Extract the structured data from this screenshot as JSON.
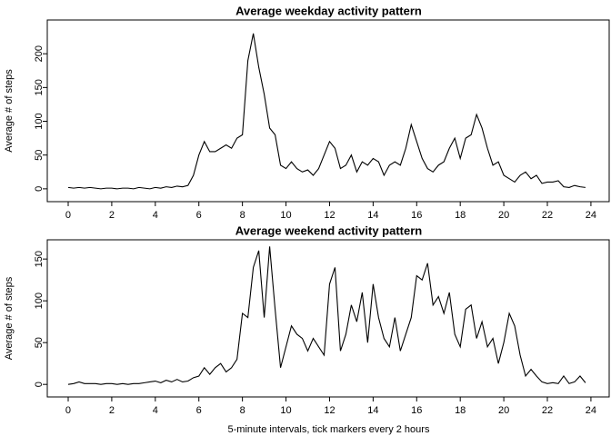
{
  "chart_data": [
    {
      "type": "line",
      "title": "Average weekday activity pattern",
      "y_label": "Average # of steps",
      "x": [
        0,
        0.25,
        0.5,
        0.75,
        1,
        1.25,
        1.5,
        1.75,
        2,
        2.25,
        2.5,
        2.75,
        3,
        3.25,
        3.5,
        3.75,
        4,
        4.25,
        4.5,
        4.75,
        5,
        5.25,
        5.5,
        5.75,
        6,
        6.25,
        6.5,
        6.75,
        7,
        7.25,
        7.5,
        7.75,
        8,
        8.25,
        8.5,
        8.75,
        9,
        9.25,
        9.5,
        9.75,
        10,
        10.25,
        10.5,
        10.75,
        11,
        11.25,
        11.5,
        11.75,
        12,
        12.25,
        12.5,
        12.75,
        13,
        13.25,
        13.5,
        13.75,
        14,
        14.25,
        14.5,
        14.75,
        15,
        15.25,
        15.5,
        15.75,
        16,
        16.25,
        16.5,
        16.75,
        17,
        17.25,
        17.5,
        17.75,
        18,
        18.25,
        18.5,
        18.75,
        19,
        19.25,
        19.5,
        19.75,
        20,
        20.25,
        20.5,
        20.75,
        21,
        21.25,
        21.5,
        21.75,
        22,
        22.25,
        22.5,
        22.75,
        23,
        23.25,
        23.5,
        23.75
      ],
      "series": [
        {
          "color": "#000000",
          "values": [
            2,
            1,
            2,
            1,
            2,
            1,
            0,
            1,
            1,
            0,
            1,
            1,
            0,
            2,
            1,
            0,
            2,
            1,
            3,
            2,
            4,
            3,
            5,
            20,
            50,
            70,
            55,
            55,
            60,
            65,
            60,
            75,
            80,
            190,
            230,
            180,
            140,
            90,
            80,
            35,
            30,
            40,
            30,
            25,
            28,
            20,
            30,
            50,
            70,
            60,
            30,
            35,
            50,
            25,
            40,
            35,
            45,
            40,
            20,
            35,
            40,
            35,
            60,
            95,
            70,
            45,
            30,
            25,
            35,
            40,
            60,
            75,
            45,
            75,
            80,
            110,
            90,
            60,
            35,
            40,
            20,
            15,
            10,
            20,
            25,
            15,
            20,
            8,
            10,
            10,
            12,
            3,
            2,
            5,
            3,
            2
          ]
        }
      ],
      "xlim": [
        -0.96,
        24.88
      ],
      "ylim": [
        -19,
        250
      ],
      "xticks": [
        0,
        2,
        4,
        6,
        8,
        10,
        12,
        14,
        16,
        18,
        20,
        22,
        24
      ],
      "yticks": [
        0,
        50,
        100,
        150,
        200
      ]
    },
    {
      "type": "line",
      "title": "Average weekend activity pattern",
      "y_label": "Average # of steps",
      "x_label": "5-minute intervals, tick markers every 2 hours",
      "x": [
        0,
        0.25,
        0.5,
        0.75,
        1,
        1.25,
        1.5,
        1.75,
        2,
        2.25,
        2.5,
        2.75,
        3,
        3.25,
        3.5,
        3.75,
        4,
        4.25,
        4.5,
        4.75,
        5,
        5.25,
        5.5,
        5.75,
        6,
        6.25,
        6.5,
        6.75,
        7,
        7.25,
        7.5,
        7.75,
        8,
        8.25,
        8.5,
        8.75,
        9,
        9.25,
        9.5,
        9.75,
        10,
        10.25,
        10.5,
        10.75,
        11,
        11.25,
        11.5,
        11.75,
        12,
        12.25,
        12.5,
        12.75,
        13,
        13.25,
        13.5,
        13.75,
        14,
        14.25,
        14.5,
        14.75,
        15,
        15.25,
        15.5,
        15.75,
        16,
        16.25,
        16.5,
        16.75,
        17,
        17.25,
        17.5,
        17.75,
        18,
        18.25,
        18.5,
        18.75,
        19,
        19.25,
        19.5,
        19.75,
        20,
        20.25,
        20.5,
        20.75,
        21,
        21.25,
        21.5,
        21.75,
        22,
        22.25,
        22.5,
        22.75,
        23,
        23.25,
        23.5,
        23.75
      ],
      "series": [
        {
          "color": "#000000",
          "values": [
            0,
            1,
            3,
            1,
            1,
            1,
            0,
            1,
            1,
            0,
            1,
            0,
            1,
            1,
            2,
            3,
            4,
            2,
            5,
            3,
            6,
            3,
            4,
            8,
            10,
            20,
            12,
            20,
            25,
            15,
            20,
            30,
            85,
            80,
            140,
            160,
            80,
            165,
            90,
            20,
            45,
            70,
            60,
            55,
            40,
            55,
            45,
            35,
            120,
            140,
            40,
            60,
            95,
            75,
            110,
            50,
            120,
            80,
            55,
            45,
            80,
            40,
            60,
            80,
            130,
            125,
            145,
            95,
            105,
            85,
            110,
            60,
            45,
            90,
            95,
            55,
            75,
            45,
            55,
            25,
            50,
            85,
            70,
            35,
            10,
            18,
            10,
            3,
            1,
            2,
            1,
            10,
            1,
            3,
            10,
            2
          ]
        }
      ],
      "xlim": [
        -0.96,
        24.88
      ],
      "ylim": [
        -15,
        173
      ],
      "xticks": [
        0,
        2,
        4,
        6,
        8,
        10,
        12,
        14,
        16,
        18,
        20,
        22,
        24
      ],
      "yticks": [
        0,
        50,
        100,
        150
      ]
    }
  ]
}
